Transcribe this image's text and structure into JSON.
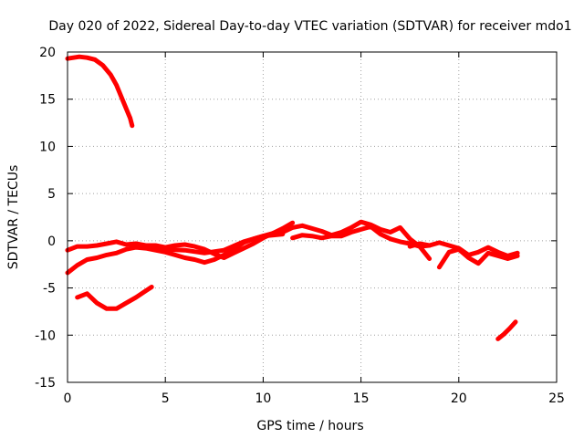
{
  "chart_data": {
    "type": "line",
    "title": "Day 020 of 2022, Sidereal Day-to-day VTEC variation (SDTVAR) for receiver mdo1",
    "xlabel": "GPS time / hours",
    "ylabel": "SDTVAR / TECUs",
    "xlim": [
      0,
      25
    ],
    "ylim": [
      -15,
      20
    ],
    "xticks": [
      0,
      5,
      10,
      15,
      20,
      25
    ],
    "yticks": [
      -15,
      -10,
      -5,
      0,
      5,
      10,
      15,
      20
    ],
    "grid": true,
    "series_color": "#ff0000",
    "series": [
      {
        "name": "arc-high",
        "x": [
          0.0,
          0.3,
          0.6,
          1.0,
          1.4,
          1.8,
          2.2,
          2.5,
          2.8,
          3.0,
          3.2,
          3.3
        ],
        "y": [
          19.3,
          19.4,
          19.5,
          19.4,
          19.2,
          18.6,
          17.6,
          16.5,
          15.0,
          14.0,
          13.0,
          12.2
        ]
      },
      {
        "name": "arc-main-a",
        "x": [
          0.0,
          0.5,
          1.0,
          1.5,
          2.0,
          2.5,
          3.0,
          3.5,
          4.0,
          4.5,
          5.0,
          5.5,
          6.0,
          6.5,
          7.0,
          7.5,
          8.0,
          8.5,
          9.0,
          9.5,
          10.0,
          10.5,
          11.0,
          11.5
        ],
        "y": [
          -1.0,
          -0.6,
          -0.6,
          -0.5,
          -0.3,
          -0.1,
          -0.4,
          -0.3,
          -0.5,
          -0.5,
          -0.7,
          -0.5,
          -0.4,
          -0.6,
          -0.9,
          -1.4,
          -1.8,
          -1.3,
          -0.8,
          -0.3,
          0.3,
          0.8,
          1.3,
          1.9
        ]
      },
      {
        "name": "arc-main-b",
        "x": [
          0.0,
          0.5,
          1.0,
          1.5,
          2.0,
          2.5,
          3.0,
          3.5,
          4.0,
          4.5,
          5.0,
          5.5,
          6.0,
          6.5,
          7.0,
          7.5,
          8.0,
          8.5,
          9.0,
          9.5,
          10.0,
          10.5,
          11.0
        ],
        "y": [
          -3.4,
          -2.6,
          -2.0,
          -1.8,
          -1.5,
          -1.3,
          -0.9,
          -0.7,
          -0.8,
          -1.0,
          -1.2,
          -1.5,
          -1.8,
          -2.0,
          -2.3,
          -2.0,
          -1.5,
          -0.9,
          -0.2,
          0.2,
          0.5,
          0.8,
          0.9
        ]
      },
      {
        "name": "arc-main-c",
        "x": [
          4.0,
          5.0,
          6.0,
          7.0,
          8.0,
          9.0,
          10.0,
          11.0
        ],
        "y": [
          -0.6,
          -0.9,
          -1.0,
          -1.3,
          -1.0,
          -0.1,
          0.5,
          0.7
        ]
      },
      {
        "name": "arc-mid",
        "x": [
          10.5,
          11.0,
          11.5,
          12.0,
          12.5,
          13.0,
          13.5,
          14.0,
          14.5,
          15.0,
          15.5,
          16.0,
          16.5,
          17.0,
          17.5,
          18.0,
          18.5
        ],
        "y": [
          0.7,
          0.9,
          1.4,
          1.6,
          1.3,
          1.0,
          0.6,
          0.9,
          1.4,
          2.0,
          1.7,
          1.2,
          0.9,
          1.4,
          0.2,
          -0.6,
          -1.9
        ]
      },
      {
        "name": "arc-mid-b",
        "x": [
          11.5,
          12.0,
          12.5,
          13.0,
          13.5,
          14.0,
          14.5,
          15.0,
          15.5,
          16.0,
          16.5,
          17.0,
          17.5,
          18.0,
          18.5
        ],
        "y": [
          0.3,
          0.6,
          0.5,
          0.3,
          0.5,
          0.5,
          0.9,
          1.2,
          1.5,
          0.7,
          0.2,
          -0.1,
          -0.3,
          -0.6,
          -0.5
        ]
      },
      {
        "name": "arc-late",
        "x": [
          17.5,
          18.0,
          18.5,
          19.0,
          19.5,
          20.0,
          20.5,
          21.0,
          21.5,
          22.0,
          22.5,
          23.0
        ],
        "y": [
          -0.6,
          -0.3,
          -0.5,
          -0.2,
          -0.5,
          -0.8,
          -1.5,
          -1.2,
          -0.7,
          -1.2,
          -1.6,
          -1.3
        ]
      },
      {
        "name": "arc-late-b",
        "x": [
          19.0,
          19.5,
          20.0,
          20.5,
          21.0,
          21.5,
          22.0,
          22.5,
          23.0
        ],
        "y": [
          -2.8,
          -1.2,
          -0.9,
          -1.8,
          -2.4,
          -1.3,
          -1.6,
          -1.9,
          -1.6
        ]
      },
      {
        "name": "arc-low",
        "x": [
          0.5,
          1.0,
          1.5,
          2.0,
          2.5,
          3.0,
          3.5,
          4.0,
          4.3
        ],
        "y": [
          -6.0,
          -5.6,
          -6.6,
          -7.2,
          -7.2,
          -6.6,
          -6.0,
          -5.3,
          -4.9
        ]
      },
      {
        "name": "arc-end",
        "x": [
          22.0,
          22.3,
          22.6,
          22.9
        ],
        "y": [
          -10.4,
          -9.9,
          -9.3,
          -8.6
        ]
      }
    ]
  }
}
